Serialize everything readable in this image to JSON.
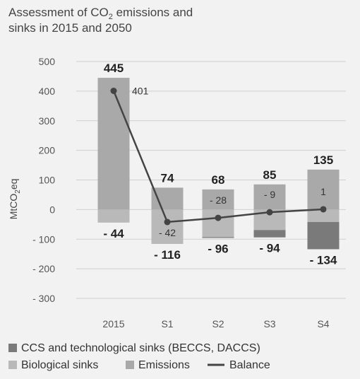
{
  "chart_data": {
    "type": "bar",
    "title_lines": [
      {
        "parts": [
          {
            "text": "Assessment of CO",
            "sub": false
          },
          {
            "text": "2",
            "sub": true
          },
          {
            "text": " emissions and",
            "sub": false
          }
        ]
      },
      {
        "parts": [
          {
            "text": "sinks in 2015 and 2050",
            "sub": false
          }
        ]
      }
    ],
    "ylabel_parts": [
      {
        "text": "MtCO",
        "sub": false
      },
      {
        "text": "2",
        "sub": true
      },
      {
        "text": "eq",
        "sub": false
      }
    ],
    "ylim": [
      -300,
      500
    ],
    "yticks": [
      500,
      400,
      300,
      200,
      100,
      0,
      -100,
      -200,
      -300
    ],
    "ytick_labels": [
      "500",
      "400",
      "300",
      "200",
      "100",
      "0",
      "- 100",
      "- 200",
      "- 300"
    ],
    "categories": [
      "2015",
      "S1",
      "S2",
      "S3",
      "S4"
    ],
    "series": [
      {
        "name": "CCS and technological sinks (BECCS, DACCS)",
        "color": "#7a7a7a",
        "values": [
          0,
          0,
          -3,
          -25,
          -92
        ]
      },
      {
        "name": "Biological sinks",
        "color": "#b9b9b9",
        "values": [
          -44,
          -116,
          -93,
          -69,
          -42
        ]
      },
      {
        "name": "Emissions",
        "color": "#a9a9a9",
        "values": [
          445,
          74,
          68,
          85,
          135
        ]
      },
      {
        "name": "Balance",
        "color": "#444444",
        "values": [
          401,
          -42,
          -28,
          -9,
          1
        ]
      }
    ],
    "positive_totals": [
      "445",
      "74",
      "68",
      "85",
      "135"
    ],
    "negative_totals": [
      "- 44",
      "- 116",
      "- 96",
      "- 94",
      "- 134"
    ],
    "balance_labels": [
      "401",
      "- 42",
      "- 28",
      "- 9",
      "1"
    ],
    "grid": true,
    "legend_position": "bottom"
  }
}
